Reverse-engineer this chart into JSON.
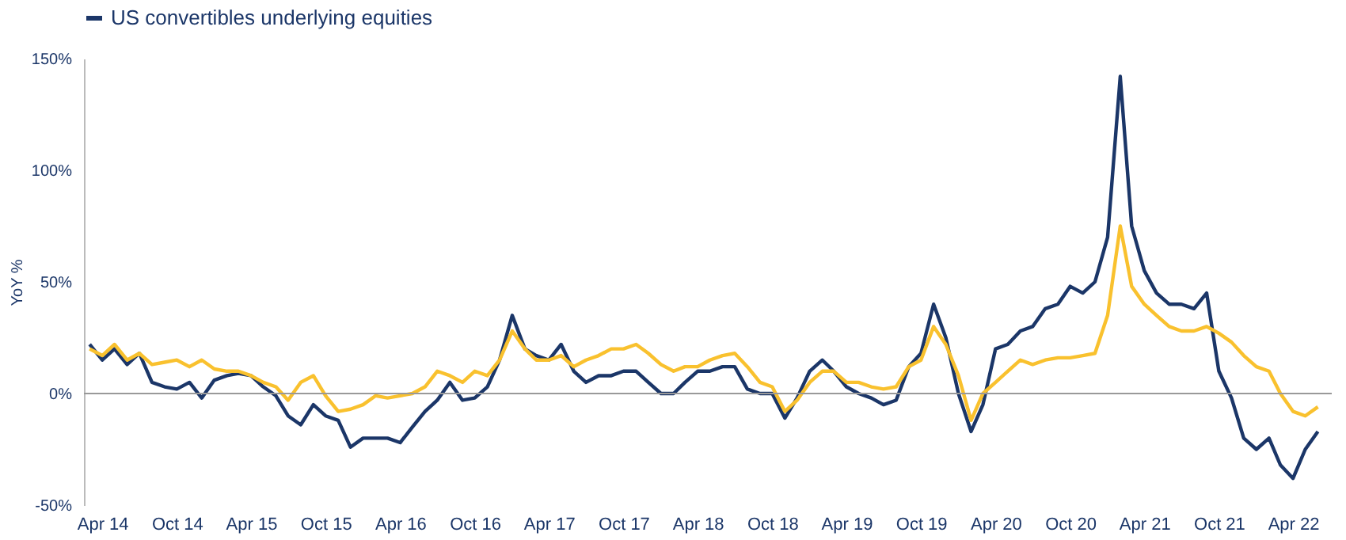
{
  "chart_data": {
    "type": "line",
    "ylabel": "YoY %",
    "legend": "top",
    "grid": false,
    "line_style": "solid",
    "x": [
      "2014-03",
      "2014-04",
      "2014-05",
      "2014-06",
      "2014-07",
      "2014-08",
      "2014-09",
      "2014-10",
      "2014-11",
      "2014-12",
      "2015-01",
      "2015-02",
      "2015-03",
      "2015-04",
      "2015-05",
      "2015-06",
      "2015-07",
      "2015-08",
      "2015-09",
      "2015-10",
      "2015-11",
      "2015-12",
      "2016-01",
      "2016-02",
      "2016-03",
      "2016-04",
      "2016-05",
      "2016-06",
      "2016-07",
      "2016-08",
      "2016-09",
      "2016-10",
      "2016-11",
      "2016-12",
      "2017-01",
      "2017-02",
      "2017-03",
      "2017-04",
      "2017-05",
      "2017-06",
      "2017-07",
      "2017-08",
      "2017-09",
      "2017-10",
      "2017-11",
      "2017-12",
      "2018-01",
      "2018-02",
      "2018-03",
      "2018-04",
      "2018-05",
      "2018-06",
      "2018-07",
      "2018-08",
      "2018-09",
      "2018-10",
      "2018-11",
      "2018-12",
      "2019-01",
      "2019-02",
      "2019-03",
      "2019-04",
      "2019-05",
      "2019-06",
      "2019-07",
      "2019-08",
      "2019-09",
      "2019-10",
      "2019-11",
      "2019-12",
      "2020-01",
      "2020-02",
      "2020-03",
      "2020-04",
      "2020-05",
      "2020-06",
      "2020-07",
      "2020-08",
      "2020-09",
      "2020-10",
      "2020-11",
      "2020-12",
      "2021-01",
      "2021-02",
      "2021-03",
      "2021-04",
      "2021-05",
      "2021-06",
      "2021-07",
      "2021-08",
      "2021-09",
      "2021-10",
      "2021-11",
      "2021-12",
      "2022-01",
      "2022-02",
      "2022-03",
      "2022-04",
      "2022-05",
      "2022-06"
    ],
    "series": [
      {
        "name": "US convertibles underlying equities",
        "color": "#1b3668",
        "values": [
          22,
          15,
          20,
          13,
          18,
          5,
          3,
          2,
          5,
          -2,
          6,
          8,
          9,
          8,
          3,
          -1,
          -10,
          -14,
          -5,
          -10,
          -12,
          -24,
          -20,
          -20,
          -20,
          -22,
          -15,
          -8,
          -3,
          5,
          -3,
          -2,
          3,
          15,
          35,
          20,
          17,
          15,
          22,
          10,
          5,
          8,
          8,
          10,
          10,
          5,
          0,
          0,
          5,
          10,
          10,
          12,
          12,
          2,
          0,
          0,
          -11,
          -2,
          10,
          15,
          10,
          3,
          0,
          -2,
          -5,
          -3,
          12,
          18,
          40,
          25,
          0,
          -17,
          -5,
          20,
          22,
          28,
          30,
          38,
          40,
          48,
          45,
          50,
          70,
          142,
          75,
          55,
          45,
          40,
          40,
          38,
          45,
          10,
          -2,
          -20,
          -25,
          -20,
          -32,
          -38,
          -25,
          -17
        ]
      },
      {
        "color": "#f9c12e",
        "values": [
          20,
          17,
          22,
          15,
          18,
          13,
          14,
          15,
          12,
          15,
          11,
          10,
          10,
          8,
          5,
          3,
          -3,
          5,
          8,
          -1,
          -8,
          -7,
          -5,
          -1,
          -2,
          -1,
          0,
          3,
          10,
          8,
          5,
          10,
          8,
          15,
          28,
          20,
          15,
          15,
          17,
          12,
          15,
          17,
          20,
          20,
          22,
          18,
          13,
          10,
          12,
          12,
          15,
          17,
          18,
          12,
          5,
          3,
          -8,
          -3,
          5,
          10,
          10,
          5,
          5,
          3,
          2,
          3,
          12,
          15,
          30,
          22,
          8,
          -12,
          0,
          5,
          10,
          15,
          13,
          15,
          16,
          16,
          17,
          18,
          35,
          75,
          48,
          40,
          35,
          30,
          28,
          28,
          30,
          27,
          23,
          17,
          12,
          10,
          0,
          -8,
          -10,
          -6
        ]
      }
    ],
    "xlim": [
      "2014-02-15",
      "2022-07-05"
    ],
    "xticks": [
      {
        "value": "2014-04",
        "label": "Apr 14"
      },
      {
        "value": "2014-10",
        "label": "Oct 14"
      },
      {
        "value": "2015-04",
        "label": "Apr 15"
      },
      {
        "value": "2015-10",
        "label": "Oct 15"
      },
      {
        "value": "2016-04",
        "label": "Apr 16"
      },
      {
        "value": "2016-10",
        "label": "Oct 16"
      },
      {
        "value": "2017-04",
        "label": "Apr 17"
      },
      {
        "value": "2017-10",
        "label": "Oct 17"
      },
      {
        "value": "2018-04",
        "label": "Apr 18"
      },
      {
        "value": "2018-10",
        "label": "Oct 18"
      },
      {
        "value": "2019-04",
        "label": "Apr 19"
      },
      {
        "value": "2019-10",
        "label": "Oct 19"
      },
      {
        "value": "2020-04",
        "label": "Apr 20"
      },
      {
        "value": "2020-10",
        "label": "Oct 20"
      },
      {
        "value": "2021-04",
        "label": "Apr 21"
      },
      {
        "value": "2021-10",
        "label": "Oct 21"
      },
      {
        "value": "2022-04",
        "label": "Apr 22"
      }
    ],
    "ylim": [
      -50,
      150
    ],
    "yticks": [
      {
        "value": -50,
        "label": "-50%"
      },
      {
        "value": 0,
        "label": "0%"
      },
      {
        "value": 50,
        "label": "50%"
      },
      {
        "value": 100,
        "label": "100%"
      },
      {
        "value": 150,
        "label": "150%"
      }
    ],
    "ref_lines": [
      {
        "axis": "y",
        "value": 0,
        "color": "#999999"
      }
    ]
  }
}
